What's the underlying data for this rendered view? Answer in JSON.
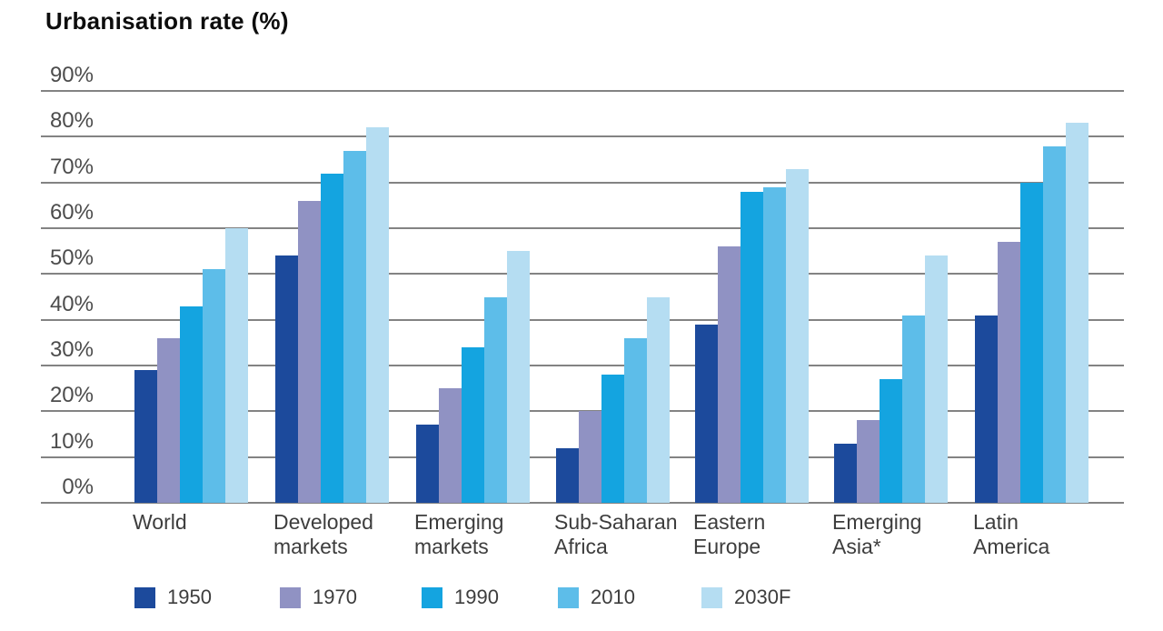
{
  "title": "Urbanisation rate (%)",
  "colors": {
    "gridline": "#838383",
    "title_text": "#0d0d0d",
    "axis_text": "#4c4c4c",
    "label_text": "#3d3d3d",
    "background": "#ffffff"
  },
  "chart_data": {
    "type": "bar",
    "title": "Urbanisation rate (%)",
    "xlabel": "",
    "ylabel": "Urbanisation rate (%)",
    "ylim": [
      0,
      90
    ],
    "grid": true,
    "legend_position": "bottom",
    "ytick_labels": [
      "90%",
      "80%",
      "70%",
      "60%",
      "50%",
      "40%",
      "30%",
      "20%",
      "10%",
      "0%"
    ],
    "categories": [
      "World",
      "Developed markets",
      "Emerging markets",
      "Sub-Saharan Africa",
      "Eastern Europe",
      "Emerging Asia*",
      "Latin America"
    ],
    "category_lines": [
      [
        "World"
      ],
      [
        "Developed",
        "markets"
      ],
      [
        "Emerging",
        "markets"
      ],
      [
        "Sub-Saharan",
        "Africa"
      ],
      [
        "Eastern",
        "Europe"
      ],
      [
        "Emerging",
        "Asia*"
      ],
      [
        "Latin",
        "America"
      ]
    ],
    "series": [
      {
        "name": "1950",
        "color": "#1c4a9c",
        "values": [
          29,
          54,
          17,
          12,
          39,
          13,
          41
        ]
      },
      {
        "name": "1970",
        "color": "#9092c3",
        "values": [
          36,
          66,
          25,
          20,
          56,
          18,
          57
        ]
      },
      {
        "name": "1990",
        "color": "#14a4e0",
        "values": [
          43,
          72,
          34,
          28,
          68,
          27,
          70
        ]
      },
      {
        "name": "2010",
        "color": "#5dbde9",
        "values": [
          51,
          77,
          45,
          36,
          69,
          41,
          78
        ]
      },
      {
        "name": "2030F",
        "color": "#b5ddf2",
        "values": [
          60,
          82,
          55,
          45,
          73,
          54,
          83
        ]
      }
    ]
  }
}
